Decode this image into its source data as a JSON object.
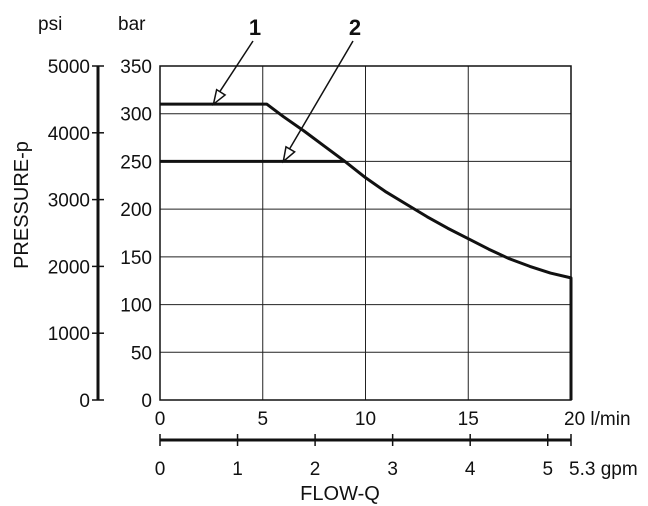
{
  "chart_data": {
    "type": "line",
    "title": "",
    "xlabel": "FLOW-Q",
    "ylabel": "PRESSURE-p",
    "x_unit_primary": "l/min",
    "x_unit_secondary": "gpm",
    "y_unit_primary": "bar",
    "y_unit_secondary": "psi",
    "xlim": [
      0,
      20
    ],
    "ylim": [
      0,
      350
    ],
    "grid": true,
    "x_ticks": [
      "0",
      "5",
      "10",
      "15",
      "20 l/min"
    ],
    "x_ticks_gpm": [
      "0",
      "1",
      "2",
      "3",
      "4",
      "5",
      "5.3 gpm"
    ],
    "y_ticks_bar": [
      "0",
      "50",
      "100",
      "150",
      "200",
      "250",
      "300",
      "350"
    ],
    "y_ticks_psi": [
      "0",
      "1000",
      "2000",
      "3000",
      "4000",
      "5000"
    ],
    "series": [
      {
        "name": "1",
        "x": [
          0,
          5.2,
          6,
          7,
          8,
          9,
          10,
          11,
          12,
          13,
          14,
          15,
          16,
          17,
          18,
          19,
          20,
          20
        ],
        "y": [
          310,
          310,
          297,
          282,
          266,
          250,
          233,
          218,
          205,
          192,
          180,
          169,
          158,
          148,
          140,
          133,
          128,
          0
        ]
      },
      {
        "name": "2",
        "x": [
          0,
          9
        ],
        "y": [
          250,
          250
        ]
      }
    ]
  }
}
